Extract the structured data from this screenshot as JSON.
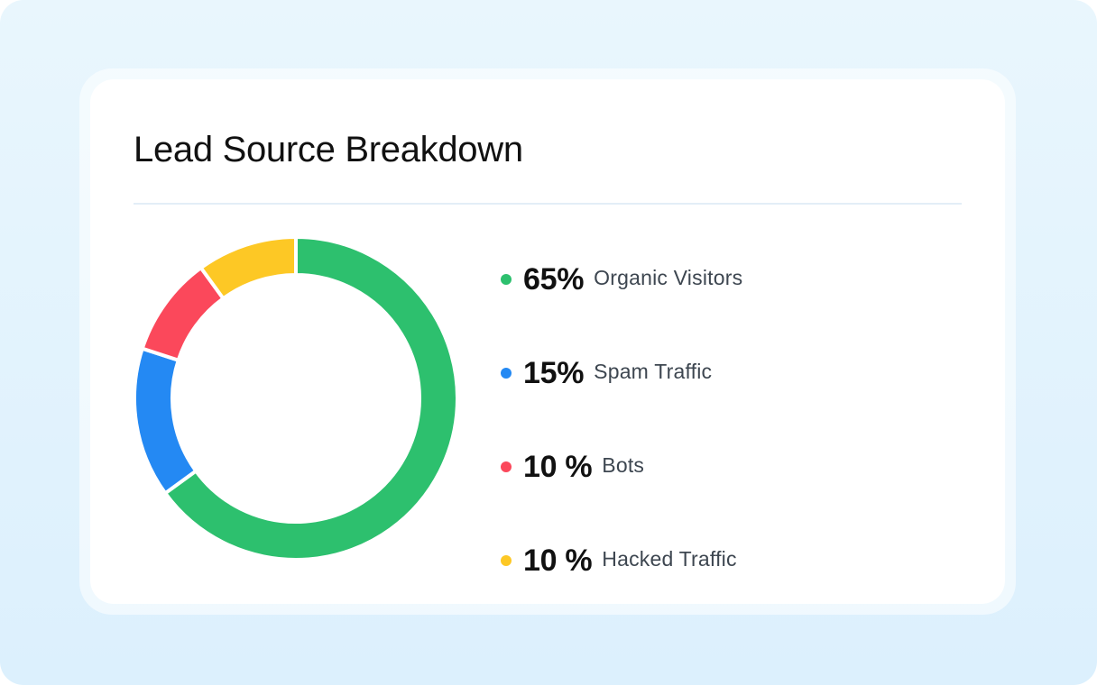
{
  "chart_data": {
    "type": "pie",
    "title": "Lead Source Breakdown",
    "slices": [
      {
        "label": "Organic Visitors",
        "display": "65%",
        "value": 65,
        "color": "#2dc06e"
      },
      {
        "label": "Spam Traffic",
        "display": "15%",
        "value": 15,
        "color": "#2489f3"
      },
      {
        "label": "Bots",
        "display": "10 %",
        "value": 10,
        "color": "#fb485b"
      },
      {
        "label": "Hacked Traffic",
        "display": "10 %",
        "value": 10,
        "color": "#fdc825"
      }
    ],
    "legend": "right",
    "style": "donut"
  }
}
